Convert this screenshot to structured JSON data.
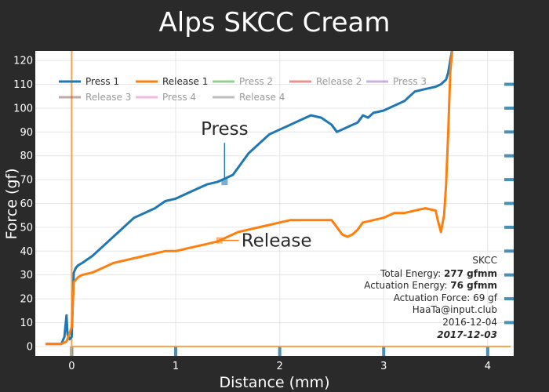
{
  "chart_data": {
    "type": "line",
    "title": "Alps SKCC Cream",
    "xlabel": "Distance (mm)",
    "ylabel": "Force (gf)",
    "xlim": [
      -0.35,
      4.25
    ],
    "ylim": [
      -4,
      124
    ],
    "x_ticks": [
      0,
      1,
      2,
      3,
      4
    ],
    "y_ticks": [
      0,
      10,
      20,
      30,
      40,
      50,
      60,
      70,
      80,
      90,
      100,
      110,
      120
    ],
    "grid": true,
    "legend_position": "top-left",
    "series": [
      {
        "name": "Press 1",
        "color": "#1f77b4",
        "visible": true,
        "x": [
          -0.25,
          -0.1,
          -0.07,
          -0.05,
          -0.04,
          -0.02,
          0.0,
          0.02,
          0.04,
          0.06,
          0.1,
          0.2,
          0.3,
          0.4,
          0.5,
          0.6,
          0.7,
          0.8,
          0.9,
          1.0,
          1.1,
          1.2,
          1.3,
          1.4,
          1.45,
          1.5,
          1.55,
          1.6,
          1.7,
          1.8,
          1.9,
          2.0,
          2.1,
          2.2,
          2.3,
          2.4,
          2.5,
          2.55,
          2.6,
          2.65,
          2.7,
          2.75,
          2.8,
          2.85,
          2.9,
          3.0,
          3.1,
          3.2,
          3.25,
          3.3,
          3.4,
          3.5,
          3.55,
          3.6,
          3.62,
          3.64,
          3.66
        ],
        "y": [
          1,
          1,
          4,
          13,
          5,
          3,
          4,
          31,
          33,
          34,
          35,
          38,
          42,
          46,
          50,
          54,
          56,
          58,
          61,
          62,
          64,
          66,
          68,
          69,
          70,
          71,
          72,
          75,
          81,
          85,
          89,
          91,
          93,
          95,
          97,
          96,
          93,
          90,
          91,
          92,
          93,
          94,
          97,
          96,
          98,
          99,
          101,
          103,
          105,
          107,
          108,
          109,
          110,
          112,
          115,
          120,
          125
        ]
      },
      {
        "name": "Release 1",
        "color": "#ff7f0e",
        "visible": true,
        "x": [
          -0.25,
          -0.1,
          -0.05,
          0.0,
          0.02,
          0.04,
          0.06,
          0.1,
          0.2,
          0.3,
          0.4,
          0.5,
          0.6,
          0.7,
          0.8,
          0.9,
          1.0,
          1.1,
          1.2,
          1.3,
          1.4,
          1.45,
          1.5,
          1.6,
          1.7,
          1.8,
          1.9,
          2.0,
          2.1,
          2.2,
          2.3,
          2.4,
          2.5,
          2.55,
          2.6,
          2.65,
          2.7,
          2.75,
          2.8,
          2.9,
          3.0,
          3.1,
          3.2,
          3.3,
          3.4,
          3.5,
          3.52,
          3.55,
          3.58,
          3.6,
          3.62,
          3.64,
          3.66
        ],
        "y": [
          1,
          1,
          2,
          8,
          27,
          28,
          29,
          30,
          31,
          33,
          35,
          36,
          37,
          38,
          39,
          40,
          40,
          41,
          42,
          43,
          44,
          45,
          46,
          48,
          49,
          50,
          51,
          52,
          53,
          53,
          53,
          53,
          53,
          50,
          47,
          46,
          47,
          49,
          52,
          53,
          54,
          56,
          56,
          57,
          58,
          57,
          53,
          48,
          55,
          68,
          90,
          115,
          125
        ]
      },
      {
        "name": "Press 2",
        "color": "#2ca02c",
        "visible": false
      },
      {
        "name": "Release 2",
        "color": "#d62728",
        "visible": false
      },
      {
        "name": "Press 3",
        "color": "#9467bd",
        "visible": false
      },
      {
        "name": "Release 3",
        "color": "#8c564b",
        "visible": false
      },
      {
        "name": "Press 4",
        "color": "#e377c2",
        "visible": false
      },
      {
        "name": "Release 4",
        "color": "#7f7f7f",
        "visible": false
      }
    ],
    "annotations": [
      {
        "text": "Press",
        "x": 1.47,
        "y": 69,
        "color": "#1f77b4"
      },
      {
        "text": "Release",
        "x": 1.42,
        "y": 44.5,
        "color": "#ff7f0e"
      }
    ],
    "vertical_marker": {
      "x": 0,
      "color": "#f4a24a"
    },
    "info_box": {
      "line1": "SKCC",
      "total_energy_label": "Total Energy: ",
      "total_energy_value": "277 gfmm",
      "actuation_energy_label": "Actuation Energy: ",
      "actuation_energy_value": "76 gfmm",
      "actuation_force": "Actuation Force: 69 gf",
      "author": "HaaTa@input.club",
      "date1": "2016-12-04",
      "date2": "2017-12-03"
    }
  }
}
